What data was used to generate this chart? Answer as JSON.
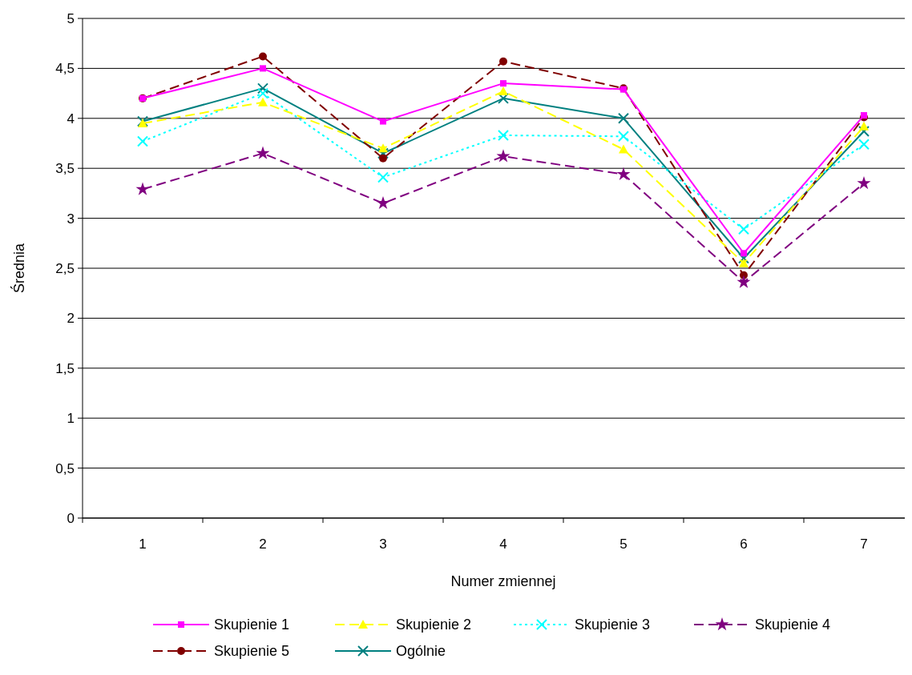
{
  "chart_data": {
    "type": "line",
    "xlabel": "Numer zmiennej",
    "ylabel": "Średnia",
    "categories": [
      "1",
      "2",
      "3",
      "4",
      "5",
      "6",
      "7"
    ],
    "ylim": [
      0,
      5
    ],
    "yticks": [
      0,
      {
        "value": 0.5,
        "label": "0,5"
      },
      1,
      {
        "value": 1.5,
        "label": "1,5"
      },
      2,
      {
        "value": 2.5,
        "label": "2,5"
      },
      3,
      {
        "value": 3.5,
        "label": "3,5"
      },
      4,
      {
        "value": 4.5,
        "label": "4,5"
      },
      5
    ],
    "grid": "y",
    "legend": "bottom",
    "series": [
      {
        "name": "Skupienie 1",
        "color": "#ff00ff",
        "marker": "square",
        "line_style": "solid",
        "values": [
          4.2,
          4.5,
          3.97,
          4.35,
          4.29,
          2.65,
          4.03
        ]
      },
      {
        "name": "Skupienie 2",
        "color": "#ffff00",
        "marker": "triangle",
        "line_style": "dashed",
        "values": [
          3.95,
          4.16,
          3.7,
          4.27,
          3.69,
          2.55,
          3.92
        ]
      },
      {
        "name": "Skupienie 3",
        "color": "#00ffff",
        "marker": "cross",
        "line_style": "dotted",
        "values": [
          3.77,
          4.25,
          3.41,
          3.83,
          3.82,
          2.89,
          3.74
        ]
      },
      {
        "name": "Skupienie 4",
        "color": "#800080",
        "marker": "star",
        "line_style": "dashed",
        "values": [
          3.29,
          3.65,
          3.15,
          3.62,
          3.44,
          2.36,
          3.35
        ]
      },
      {
        "name": "Skupienie 5",
        "color": "#800000",
        "marker": "circle",
        "line_style": "dashed",
        "values": [
          4.2,
          4.62,
          3.6,
          4.57,
          4.3,
          2.43,
          4.01
        ]
      },
      {
        "name": "Ogólnie",
        "color": "#008080",
        "marker": "cross",
        "line_style": "solid",
        "values": [
          3.97,
          4.3,
          3.65,
          4.2,
          4.0,
          2.6,
          3.87
        ]
      }
    ]
  }
}
